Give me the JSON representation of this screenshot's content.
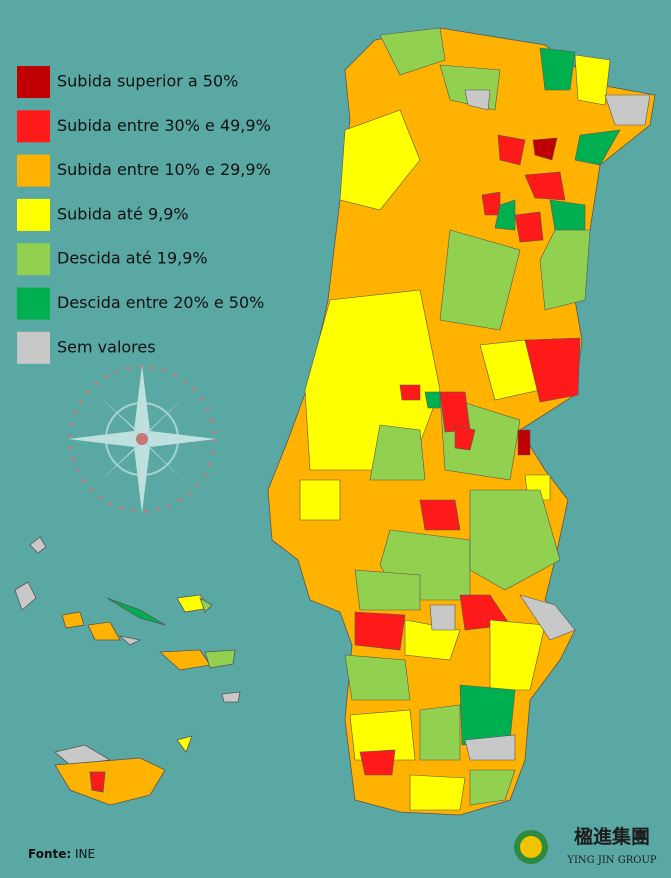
{
  "legend": {
    "items": [
      {
        "label": "Subida superior a 50%",
        "color": "#c00000"
      },
      {
        "label": "Subida entre 30% e 49,9%",
        "color": "#ff1a1a"
      },
      {
        "label": "Subida entre 10% e 29,9%",
        "color": "#ffb300"
      },
      {
        "label": "Subida até 9,9%",
        "color": "#ffff00"
      },
      {
        "label": "Descida até 19,9%",
        "color": "#92d050"
      },
      {
        "label": "Descida entre 20% e 50%",
        "color": "#00b050"
      },
      {
        "label": "Sem valores",
        "color": "#c8c8c8"
      }
    ]
  },
  "source": {
    "prefix": "Fonte:",
    "text": "INE"
  },
  "logo": {
    "chinese": "楹進集團",
    "english": "YING JIN GROUP"
  }
}
